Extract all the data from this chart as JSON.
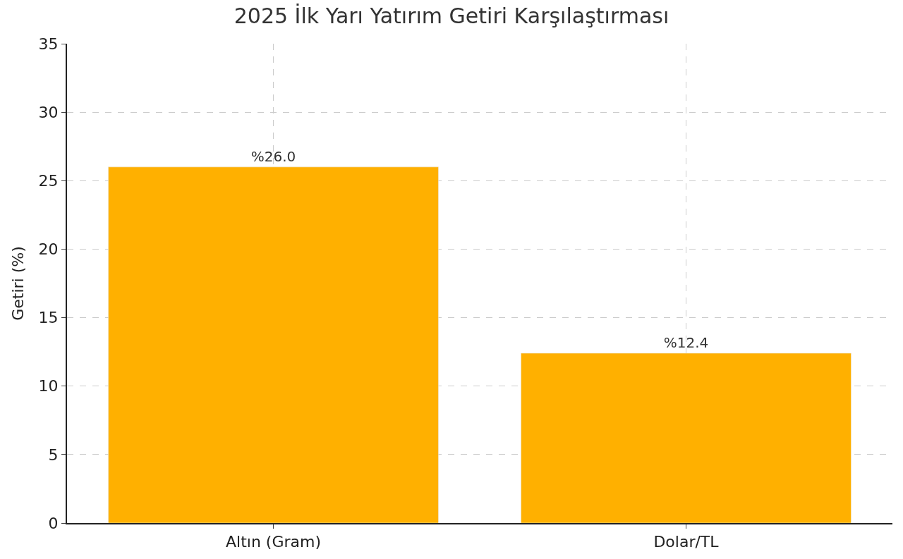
{
  "chart_data": {
    "type": "bar",
    "title": "2025 İlk Yarı Yatırım Getiri Karşılaştırması",
    "ylabel": "Getiri (%)",
    "categories": [
      "Altın (Gram)",
      "Dolar/TL"
    ],
    "values": [
      26.0,
      12.4
    ],
    "value_labels": [
      "%26.0",
      "%12.4"
    ],
    "color": "#ffb000",
    "ylim": [
      0,
      35
    ],
    "yticks": [
      0,
      5,
      10,
      15,
      20,
      25,
      30,
      35
    ],
    "grid": true
  }
}
